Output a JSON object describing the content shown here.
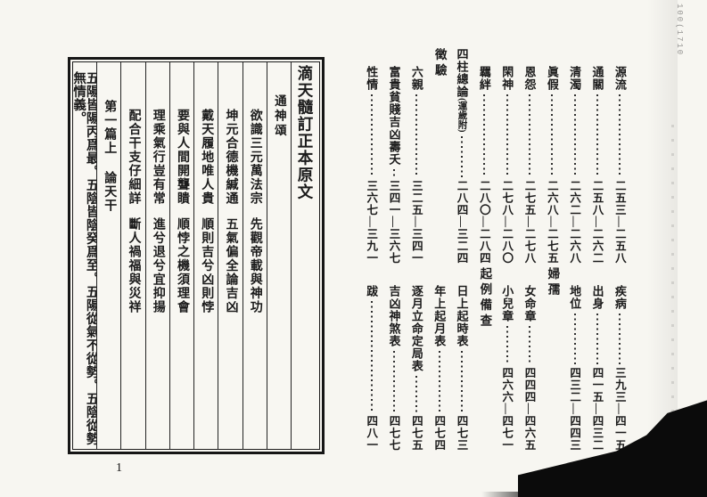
{
  "left_page": {
    "page_number": "1",
    "columns": [
      {
        "kind": "title",
        "text": "滴天髓訂正本原文"
      },
      {
        "kind": "heading",
        "text": "通神頌"
      },
      {
        "kind": "couplet",
        "p1": "欲識三元萬法宗",
        "p2": "先觀帝載與神功"
      },
      {
        "kind": "couplet",
        "p1": "坤元合德機緘通",
        "p2": "五氣偏全論吉凶"
      },
      {
        "kind": "couplet",
        "p1": "戴天履地唯人貴",
        "p2": "順則吉兮凶則悖"
      },
      {
        "kind": "couplet",
        "p1": "要與人間開聾瞶",
        "p2": "順悖之機須理會"
      },
      {
        "kind": "couplet",
        "p1": "理乘氣行豈有常",
        "p2": "進兮退兮宜抑揚"
      },
      {
        "kind": "couplet",
        "p1": "配合干支仔細詳",
        "p2": "斷人禍福與災祥"
      },
      {
        "kind": "chapter",
        "p1": "第一篇上",
        "p2": "論天干"
      },
      {
        "kind": "body",
        "text": "五陽皆陽丙爲最。五陰皆陰癸爲至。五陽從氣不從勢。五陰從勢無情義。"
      }
    ]
  },
  "right_page": {
    "toc_top": [
      {
        "label": "源流",
        "pages": "二五三—二五八"
      },
      {
        "label": "通關",
        "pages": "二五八—二六二"
      },
      {
        "label": "清濁",
        "pages": "二六二—二六八"
      },
      {
        "label": "眞假",
        "pages": "二六八—二七五"
      },
      {
        "label": "恩怨",
        "pages": "二七五—二七八"
      },
      {
        "label": "閑神",
        "pages": "二七八—二八〇"
      },
      {
        "label": "羈絆",
        "pages": "二八〇—二八四"
      },
      {
        "label": "四柱總論",
        "label_small": "(運歲附)",
        "pages": "二八四—三二四",
        "raised": true
      },
      {
        "label": "徵驗",
        "header": true
      },
      {
        "label": "六親",
        "pages": "三二五—三四一"
      },
      {
        "label": "富貴貧賤吉凶壽夭",
        "pages": "三四一—三六七"
      },
      {
        "label": "性情",
        "pages": "三六七—三九一"
      }
    ],
    "toc_bottom": [
      {
        "label": "疾病",
        "pages": "三九三—四一五"
      },
      {
        "label": "出身",
        "pages": "四一五—四三二"
      },
      {
        "label": "地位",
        "pages": "四三二—四四三"
      },
      {
        "label": "婦孺",
        "header": true
      },
      {
        "label": "女命章",
        "pages": "四四四—四六五"
      },
      {
        "label": "小兒章",
        "pages": "四六六—四七一"
      },
      {
        "label": "起例備查",
        "header": true
      },
      {
        "label": "日上起時表",
        "pages": "四七三"
      },
      {
        "label": "年上起月表",
        "pages": "四七四"
      },
      {
        "label": "逐月立命定局表",
        "pages": "四七五"
      },
      {
        "label": "吉凶神煞表",
        "pages": "四七七"
      },
      {
        "label": "跋",
        "pages": "四八一"
      }
    ]
  },
  "artifacts": {
    "corner_mark": "100(1710"
  }
}
